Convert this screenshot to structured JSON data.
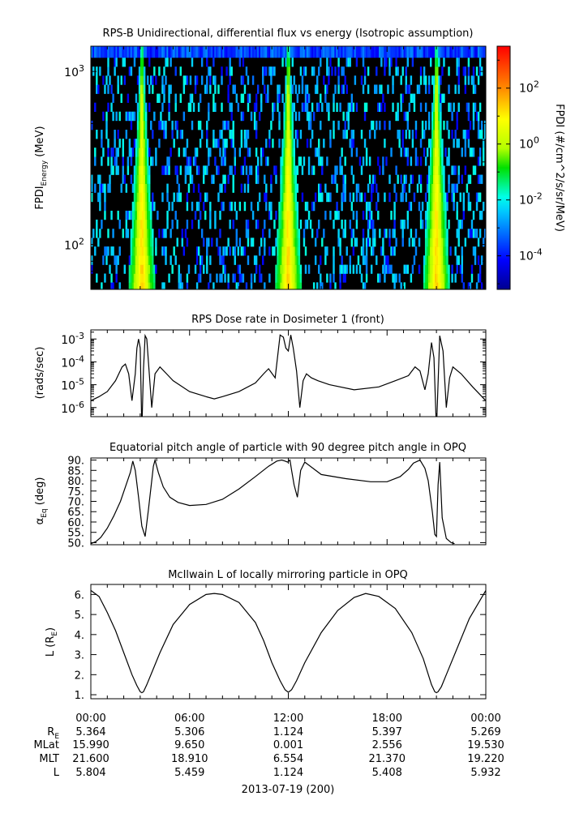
{
  "colors": {
    "axis": "#000000",
    "background": "#000000",
    "line": "#000000"
  },
  "xaxis": {
    "tick_labels": [
      "00:00",
      "06:00",
      "12:00",
      "18:00",
      "00:00"
    ],
    "date_label": "2013-07-19 (200)",
    "ephemeris": [
      {
        "label": "R",
        "sub": "E",
        "values": [
          "5.364",
          "5.306",
          "1.124",
          "5.397",
          "5.269"
        ]
      },
      {
        "label": "MLat",
        "sub": "",
        "values": [
          "15.990",
          "9.650",
          "0.001",
          "2.556",
          "19.530"
        ]
      },
      {
        "label": "MLT",
        "sub": "",
        "values": [
          "21.600",
          "18.910",
          "6.554",
          "21.370",
          "19.220"
        ]
      },
      {
        "label": "L",
        "sub": "",
        "values": [
          "5.804",
          "5.459",
          "1.124",
          "5.408",
          "5.932"
        ]
      }
    ]
  },
  "chart_data": [
    {
      "type": "heatmap",
      "title": "RPS-B  Unidirectional, differential flux vs energy (Isotropic assumption)",
      "ylabel": {
        "main": "FPDI",
        "sub": "Energy",
        "unit": " (MeV)"
      },
      "yscale": "log",
      "ylim": [
        55,
        1400
      ],
      "x_range_hours": [
        0,
        24
      ],
      "energy_channels": [
        57,
        64,
        72,
        81,
        92,
        103,
        116,
        131,
        148,
        166,
        188,
        212,
        238,
        269,
        303,
        342,
        385,
        434,
        489,
        552,
        622,
        701,
        790,
        891,
        1005,
        1133,
        1280
      ],
      "y_tick_labels": [
        {
          "base": "10",
          "exp": "2",
          "value": 100
        },
        {
          "base": "10",
          "exp": "3",
          "value": 1000
        }
      ],
      "colorbar": {
        "label": "FPDI (#/cm^2/s/sr/MeV)",
        "range_log10": [
          -5.2,
          3.5
        ],
        "tick_labels": [
          {
            "base": "10",
            "exp": "2",
            "log": 2
          },
          {
            "base": "10",
            "exp": "0",
            "log": 0
          },
          {
            "base": "10",
            "exp": "-2",
            "log": -2
          },
          {
            "base": "10",
            "exp": "-4",
            "log": -4
          }
        ]
      },
      "belt_passes_hours": [
        3.1,
        12.0,
        21.0
      ],
      "peak_log10_flux": 1.5
    },
    {
      "type": "line",
      "title": "RPS  Dose rate in Dosimeter 1 (front)",
      "ylabel": "(rads/sec)",
      "yscale": "log",
      "ylim": [
        4e-07,
        0.0025
      ],
      "y_tick_labels": [
        {
          "base": "10",
          "exp": "-3",
          "value": 0.001
        },
        {
          "base": "10",
          "exp": "-4",
          "value": 0.0001
        },
        {
          "base": "10",
          "exp": "-5",
          "value": 1e-05
        },
        {
          "base": "10",
          "exp": "-6",
          "value": 1e-06
        }
      ],
      "x": [
        0,
        0.5,
        1.0,
        1.5,
        1.9,
        2.1,
        2.3,
        2.5,
        2.7,
        2.8,
        2.9,
        3.0,
        3.1,
        3.2,
        3.3,
        3.4,
        3.5,
        3.7,
        3.9,
        4.2,
        4.6,
        5.0,
        6.0,
        7.0,
        7.5,
        8.0,
        9.0,
        10.0,
        10.5,
        10.8,
        11.2,
        11.5,
        11.7,
        11.85,
        12.0,
        12.15,
        12.3,
        12.5,
        12.7,
        12.9,
        13.1,
        13.4,
        13.8,
        14.5,
        16.0,
        17.5,
        18.5,
        19.3,
        19.7,
        20.0,
        20.3,
        20.5,
        20.7,
        20.85,
        21.0,
        21.2,
        21.4,
        21.6,
        21.8,
        22.0,
        22.5,
        23.2,
        24.0
      ],
      "y": [
        2e-06,
        3e-06,
        5e-06,
        1.5e-05,
        6e-05,
        8e-05,
        3e-05,
        2e-06,
        3e-05,
        0.0004,
        0.001,
        0.0004,
        1e-07,
        5e-05,
        0.0014,
        0.001,
        0.0001,
        1e-06,
        3e-05,
        6e-05,
        3e-05,
        1.5e-05,
        5e-06,
        3e-06,
        2.4e-06,
        3e-06,
        5e-06,
        1.2e-05,
        3e-05,
        5e-05,
        2e-05,
        0.0015,
        0.0012,
        0.0004,
        0.0003,
        0.0015,
        0.0004,
        4e-05,
        1e-06,
        1.5e-05,
        3e-05,
        2e-05,
        1.5e-05,
        1e-05,
        6e-06,
        8e-06,
        1.5e-05,
        2.5e-05,
        6e-05,
        4e-05,
        6e-06,
        3e-05,
        0.0007,
        0.00015,
        1e-07,
        0.0014,
        0.0003,
        1e-06,
        2e-05,
        6e-05,
        3e-05,
        8e-06,
        2e-06
      ]
    },
    {
      "type": "line",
      "title": "Equatorial pitch angle of particle with 90 degree pitch angle in OPQ",
      "ylabel": {
        "main": "α",
        "sub": "Eq",
        "unit": " (deg)"
      },
      "ylim": [
        49,
        91
      ],
      "y_tick_labels": [
        "50.",
        "55.",
        "60.",
        "65.",
        "70.",
        "75.",
        "80.",
        "85.",
        "90."
      ],
      "y_tick_values": [
        50,
        55,
        60,
        65,
        70,
        75,
        80,
        85,
        90
      ],
      "x": [
        0,
        0.3,
        0.6,
        1.0,
        1.4,
        1.8,
        2.1,
        2.4,
        2.55,
        2.7,
        2.9,
        3.1,
        3.3,
        3.5,
        3.7,
        3.8,
        3.9,
        4.1,
        4.4,
        4.8,
        5.3,
        6.0,
        7.0,
        8.0,
        9.0,
        10.0,
        10.8,
        11.3,
        11.6,
        11.8,
        11.95,
        12.1,
        12.2,
        12.35,
        12.55,
        12.75,
        13.0,
        14.0,
        15.5,
        17.0,
        18.0,
        18.8,
        19.3,
        19.6,
        20.0,
        20.3,
        20.5,
        20.75,
        20.9,
        21.0,
        21.1,
        21.2,
        21.35,
        21.6,
        21.9,
        22.1
      ],
      "y": [
        49.5,
        50.5,
        52.5,
        57,
        63,
        70,
        77,
        84,
        89.5,
        85,
        72,
        58,
        53,
        66,
        80,
        87,
        90,
        84,
        77,
        72,
        69.5,
        68,
        68.5,
        71,
        76,
        82,
        87,
        89.5,
        90,
        89.5,
        89,
        90,
        85,
        78,
        72,
        85,
        89,
        83,
        81,
        79.5,
        79.5,
        82,
        85.5,
        88.5,
        90,
        86,
        80,
        65,
        54,
        53,
        78,
        89,
        62,
        52,
        50,
        49.5
      ]
    },
    {
      "type": "line",
      "title": "McIlwain L of locally mirroring particle in OPQ",
      "ylabel": {
        "main": "L (R",
        "sub": "E",
        "unit": ")"
      },
      "ylim": [
        0.8,
        6.5
      ],
      "y_tick_labels": [
        "1.",
        "2.",
        "3.",
        "4.",
        "5.",
        "6."
      ],
      "y_tick_values": [
        1,
        2,
        3,
        4,
        5,
        6
      ],
      "x": [
        0,
        0.5,
        1.0,
        1.5,
        2.0,
        2.5,
        2.8,
        3.0,
        3.1,
        3.2,
        3.4,
        3.7,
        4.2,
        5.0,
        6.0,
        7.0,
        7.5,
        8.0,
        9.0,
        10.0,
        10.5,
        11.0,
        11.5,
        11.8,
        12.0,
        12.2,
        12.5,
        13.0,
        14.0,
        15.0,
        16.0,
        16.7,
        17.5,
        18.5,
        19.5,
        20.2,
        20.7,
        20.9,
        21.0,
        21.1,
        21.3,
        21.6,
        22.2,
        23.0,
        24.0
      ],
      "y": [
        6.2,
        5.9,
        5.1,
        4.2,
        3.1,
        2.0,
        1.45,
        1.15,
        1.1,
        1.15,
        1.5,
        2.1,
        3.1,
        4.5,
        5.5,
        6.0,
        6.05,
        6.0,
        5.6,
        4.6,
        3.7,
        2.6,
        1.7,
        1.25,
        1.12,
        1.25,
        1.7,
        2.6,
        4.1,
        5.2,
        5.85,
        6.05,
        5.9,
        5.3,
        4.1,
        2.8,
        1.5,
        1.15,
        1.1,
        1.15,
        1.4,
        2.0,
        3.2,
        4.8,
        6.2
      ]
    }
  ]
}
